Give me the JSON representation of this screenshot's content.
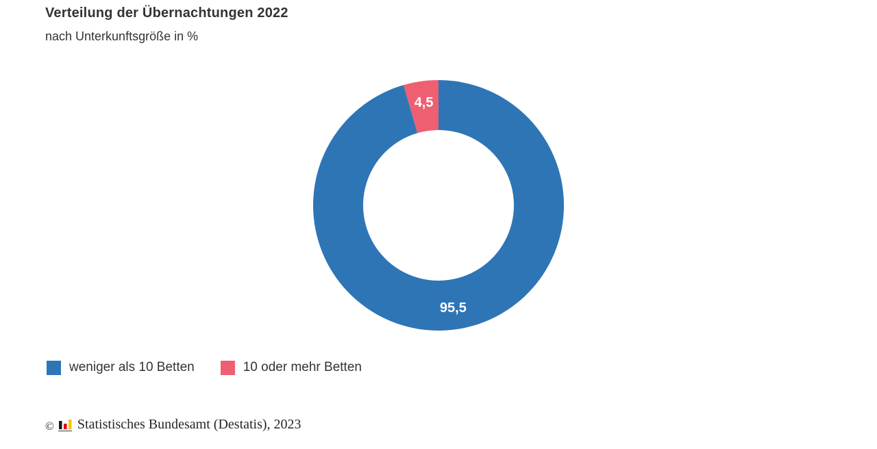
{
  "header": {
    "title": "Verteilung der Übernachtungen 2022",
    "subtitle": "nach Unterkunftsgröße in %"
  },
  "chart_data": {
    "type": "pie",
    "variant": "donut",
    "title": "Verteilung der Übernachtungen 2022",
    "subtitle": "nach Unterkunftsgröße in %",
    "unit": "%",
    "categories": [
      "weniger als 10 Betten",
      "10 oder mehr Betten"
    ],
    "values": [
      95.5,
      4.5
    ],
    "value_labels": [
      "95,5",
      "4,5"
    ],
    "colors": [
      "#2e75b6",
      "#ee5f72"
    ],
    "slice_label_color": "#ffffff",
    "start_angle_deg": 0,
    "direction": "clockwise",
    "inner_radius_ratio": 0.6,
    "legend_position": "bottom-left"
  },
  "legend": {
    "items": [
      {
        "label": "weniger als 10 Betten",
        "color": "#2e75b6"
      },
      {
        "label": "10 oder mehr Betten",
        "color": "#ee5f72"
      }
    ]
  },
  "footer": {
    "copyright_symbol": "©",
    "logo_icon": "destatis-bar-chart-logo",
    "logo_colors": {
      "black": "#1a1a1a",
      "red": "#e10019",
      "gold": "#fdc300",
      "base": "#b2b2b2"
    },
    "source_text": "Statistisches Bundesamt (Destatis), 2023"
  }
}
